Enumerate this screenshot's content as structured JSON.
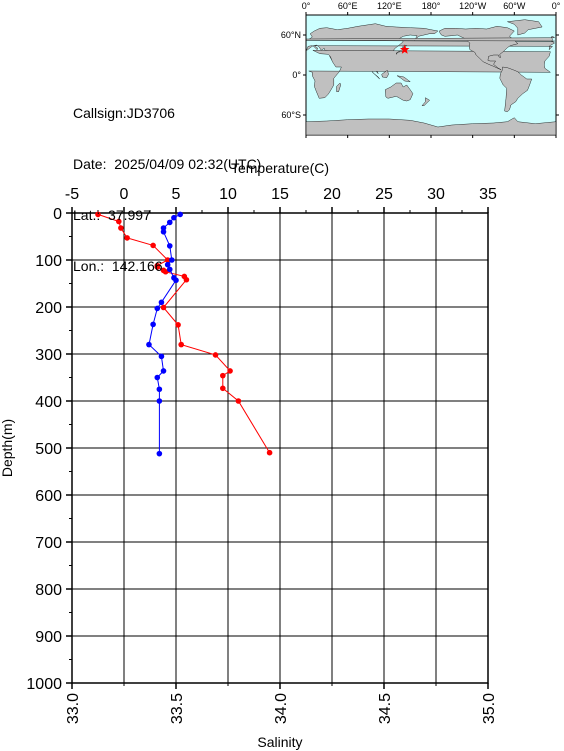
{
  "station": {
    "callsign_label": "Callsign:",
    "callsign": "JD3706",
    "date_label": "Date:",
    "date": "2025/04/09 02:32(UTC)",
    "lat_label": "Lat.:",
    "lat": "37.997",
    "lon_label": "Lon.:",
    "lon": "142.166"
  },
  "map": {
    "top_labels": [
      "0°",
      "60°E",
      "120°E",
      "180°",
      "120°W",
      "60°W",
      "0°"
    ],
    "lat_labels": [
      "60°N",
      "0°",
      "60°S"
    ],
    "ocean_color": "#ccffff",
    "land_color": "#c0c0c0",
    "marker_color": "#ff0000",
    "marker_lon": 142.166,
    "marker_lat": 37.997
  },
  "chart_data": {
    "type": "line",
    "ylabel": "Depth(m)",
    "ylim": [
      0,
      1000
    ],
    "y_inverted": true,
    "y_ticks": [
      "0",
      "100",
      "200",
      "300",
      "400",
      "500",
      "600",
      "700",
      "800",
      "900",
      "1000"
    ],
    "temperature_axis": {
      "label": "Temperature(C)",
      "range": [
        -5,
        35
      ],
      "ticks": [
        "-5",
        "0",
        "5",
        "10",
        "15",
        "20",
        "25",
        "30",
        "35"
      ],
      "position": "top"
    },
    "salinity_axis": {
      "label": "Salinity",
      "range": [
        33.0,
        35.0
      ],
      "ticks": [
        "33.0",
        "33.5",
        "34.0",
        "34.5",
        "35.0"
      ],
      "position": "bottom"
    },
    "grid": true,
    "series": [
      {
        "axis": "temperature",
        "color": "#ff0000",
        "points": [
          {
            "x": -2.5,
            "y": 3
          },
          {
            "x": -0.5,
            "y": 18
          },
          {
            "x": -0.3,
            "y": 32
          },
          {
            "x": 0.3,
            "y": 53
          },
          {
            "x": 2.8,
            "y": 69
          },
          {
            "x": 4.2,
            "y": 100
          },
          {
            "x": 3.2,
            "y": 112
          },
          {
            "x": 3.2,
            "y": 115
          },
          {
            "x": 3.8,
            "y": 122
          },
          {
            "x": 4.0,
            "y": 125
          },
          {
            "x": 5.8,
            "y": 135
          },
          {
            "x": 6.0,
            "y": 142
          },
          {
            "x": 3.8,
            "y": 201
          },
          {
            "x": 5.2,
            "y": 238
          },
          {
            "x": 5.5,
            "y": 280
          },
          {
            "x": 8.8,
            "y": 302
          },
          {
            "x": 10.2,
            "y": 336
          },
          {
            "x": 9.5,
            "y": 346
          },
          {
            "x": 9.5,
            "y": 373
          },
          {
            "x": 11.0,
            "y": 400
          },
          {
            "x": 14.0,
            "y": 510
          }
        ]
      },
      {
        "axis": "salinity",
        "color": "#0000ff",
        "points": [
          {
            "x": 33.52,
            "y": 3
          },
          {
            "x": 33.49,
            "y": 10
          },
          {
            "x": 33.47,
            "y": 20
          },
          {
            "x": 33.44,
            "y": 32
          },
          {
            "x": 33.44,
            "y": 40
          },
          {
            "x": 33.47,
            "y": 70
          },
          {
            "x": 33.48,
            "y": 100
          },
          {
            "x": 33.46,
            "y": 110
          },
          {
            "x": 33.47,
            "y": 120
          },
          {
            "x": 33.49,
            "y": 138
          },
          {
            "x": 33.5,
            "y": 143
          },
          {
            "x": 33.43,
            "y": 190
          },
          {
            "x": 33.41,
            "y": 203
          },
          {
            "x": 33.39,
            "y": 237
          },
          {
            "x": 33.37,
            "y": 280
          },
          {
            "x": 33.43,
            "y": 305
          },
          {
            "x": 33.44,
            "y": 336
          },
          {
            "x": 33.41,
            "y": 350
          },
          {
            "x": 33.42,
            "y": 375
          },
          {
            "x": 33.42,
            "y": 400
          },
          {
            "x": 33.42,
            "y": 512
          }
        ]
      }
    ]
  }
}
